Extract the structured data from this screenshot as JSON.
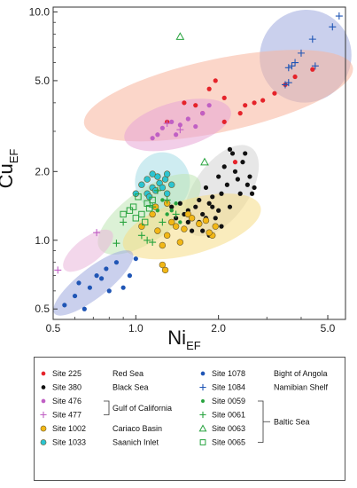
{
  "chart_data": {
    "type": "scatter",
    "xlabel_main": "Ni",
    "xlabel_sub": "EF",
    "ylabel_main": "Cu",
    "ylabel_sub": "EF",
    "x_scale": "log",
    "y_scale": "log",
    "xlim": [
      0.5,
      5.8
    ],
    "ylim": [
      0.45,
      10.5
    ],
    "x_ticks": [
      {
        "value": 0.5,
        "label": "0.5"
      },
      {
        "value": 1.0,
        "label": "1.0"
      },
      {
        "value": 2.0,
        "label": "2.0"
      },
      {
        "value": 5.0,
        "label": "5.0"
      }
    ],
    "y_ticks": [
      {
        "value": 0.5,
        "label": "0.5"
      },
      {
        "value": 1.0,
        "label": "1.0"
      },
      {
        "value": 2.0,
        "label": "2.0"
      },
      {
        "value": 5.0,
        "label": "5.0"
      },
      {
        "value": 10.0,
        "label": "10.0"
      }
    ],
    "regions": [
      {
        "cx": 4.15,
        "cy": 6.4,
        "rx_dec": 0.17,
        "ry_dec": 0.2,
        "angle": 57,
        "color": "#9fa9de"
      },
      {
        "cx": 2.0,
        "cy": 4.3,
        "rx_dec": 0.5,
        "ry_dec": 0.16,
        "angle": 12,
        "color": "#f7b49c"
      },
      {
        "cx": 1.42,
        "cy": 3.2,
        "rx_dec": 0.2,
        "ry_dec": 0.1,
        "angle": 15,
        "color": "#e8a6d6"
      },
      {
        "cx": 2.05,
        "cy": 1.65,
        "rx_dec": 0.19,
        "ry_dec": 0.12,
        "angle": 55,
        "color": "#d4d4d4"
      },
      {
        "cx": 1.25,
        "cy": 1.8,
        "rx_dec": 0.1,
        "ry_dec": 0.13,
        "angle": 0,
        "color": "#a5dde6"
      },
      {
        "cx": 1.12,
        "cy": 1.3,
        "rx_dec": 0.22,
        "ry_dec": 0.11,
        "angle": 35,
        "color": "#bfe6b4"
      },
      {
        "cx": 1.6,
        "cy": 1.15,
        "rx_dec": 0.26,
        "ry_dec": 0.12,
        "angle": 16,
        "color": "#f6dc86"
      },
      {
        "cx": 0.67,
        "cy": 0.9,
        "rx_dec": 0.11,
        "ry_dec": 0.055,
        "angle": 38,
        "color": "#e9b6db"
      },
      {
        "cx": 0.7,
        "cy": 0.65,
        "rx_dec": 0.18,
        "ry_dec": 0.065,
        "angle": 38,
        "color": "#9fa9de"
      }
    ],
    "series": [
      {
        "name": "Site 225",
        "marker": "dot",
        "color": "#e5232a",
        "points": [
          [
            1.3,
            3.3
          ],
          [
            1.5,
            4.0
          ],
          [
            1.65,
            3.9
          ],
          [
            1.85,
            4.6
          ],
          [
            1.95,
            5.0
          ],
          [
            2.1,
            3.3
          ],
          [
            2.4,
            3.6
          ],
          [
            2.5,
            3.9
          ],
          [
            2.7,
            4.0
          ],
          [
            2.9,
            4.1
          ],
          [
            3.2,
            4.4
          ],
          [
            3.5,
            4.8
          ],
          [
            3.8,
            5.2
          ],
          [
            4.4,
            5.6
          ],
          [
            2.1,
            4.2
          ],
          [
            1.75,
            3.6
          ],
          [
            2.3,
            2.2
          ]
        ]
      },
      {
        "name": "Site 380",
        "marker": "dot",
        "color": "#111111",
        "points": [
          [
            1.45,
            1.45
          ],
          [
            1.55,
            1.35
          ],
          [
            1.6,
            1.25
          ],
          [
            1.7,
            1.5
          ],
          [
            1.75,
            1.3
          ],
          [
            1.8,
            1.7
          ],
          [
            1.85,
            1.45
          ],
          [
            1.9,
            1.55
          ],
          [
            1.95,
            1.25
          ],
          [
            2.0,
            1.9
          ],
          [
            2.05,
            1.6
          ],
          [
            2.1,
            2.1
          ],
          [
            2.15,
            1.75
          ],
          [
            2.2,
            1.4
          ],
          [
            2.25,
            2.4
          ],
          [
            2.3,
            2.0
          ],
          [
            2.35,
            1.85
          ],
          [
            2.4,
            1.6
          ],
          [
            2.45,
            2.2
          ],
          [
            2.5,
            2.4
          ],
          [
            2.55,
            1.75
          ],
          [
            2.6,
            1.9
          ],
          [
            2.65,
            1.6
          ],
          [
            2.7,
            1.7
          ],
          [
            2.2,
            2.5
          ],
          [
            1.65,
            1.4
          ],
          [
            1.7,
            1.2
          ],
          [
            1.8,
            1.25
          ],
          [
            2.0,
            1.35
          ],
          [
            1.9,
            1.4
          ],
          [
            1.55,
            1.2
          ],
          [
            1.5,
            1.3
          ],
          [
            1.35,
            1.4
          ],
          [
            1.4,
            1.25
          ],
          [
            1.6,
            1.1
          ],
          [
            1.75,
            1.1
          ],
          [
            2.05,
            1.15
          ],
          [
            1.85,
            1.05
          ]
        ]
      },
      {
        "name": "Site 476",
        "marker": "dot",
        "color": "#c05fc4",
        "points": [
          [
            1.15,
            2.8
          ],
          [
            1.25,
            3.1
          ],
          [
            1.35,
            3.3
          ],
          [
            1.45,
            3.2
          ],
          [
            1.55,
            3.4
          ],
          [
            1.65,
            3.15
          ],
          [
            1.75,
            3.6
          ],
          [
            1.85,
            3.9
          ],
          [
            1.2,
            2.9
          ],
          [
            1.4,
            2.9
          ]
        ]
      },
      {
        "name": "Site 477",
        "marker": "plus",
        "color": "#c05fc4",
        "points": [
          [
            0.52,
            0.74
          ],
          [
            0.72,
            1.08
          ],
          [
            1.3,
            3.25
          ],
          [
            1.45,
            3.05
          ]
        ]
      },
      {
        "name": "Site 1002",
        "marker": "dot-outline",
        "color": "#f2b716",
        "points": [
          [
            1.2,
            1.1
          ],
          [
            1.25,
            0.95
          ],
          [
            1.3,
            1.05
          ],
          [
            1.35,
            1.2
          ],
          [
            1.4,
            1.15
          ],
          [
            1.45,
            0.98
          ],
          [
            1.5,
            1.12
          ],
          [
            1.55,
            1.3
          ],
          [
            1.6,
            1.25
          ],
          [
            1.7,
            1.18
          ],
          [
            1.8,
            1.22
          ],
          [
            1.9,
            1.05
          ],
          [
            1.85,
            1.08
          ],
          [
            1.95,
            1.15
          ],
          [
            1.25,
            0.78
          ],
          [
            1.28,
            0.74
          ],
          [
            1.15,
            1.3
          ],
          [
            1.18,
            1.4
          ],
          [
            1.3,
            1.45
          ],
          [
            1.05,
            1.15
          ]
        ]
      },
      {
        "name": "Site 1033",
        "marker": "dot-outline",
        "color": "#2cc4d1",
        "points": [
          [
            1.0,
            1.6
          ],
          [
            1.05,
            1.75
          ],
          [
            1.1,
            1.85
          ],
          [
            1.15,
            1.7
          ],
          [
            1.18,
            1.65
          ],
          [
            1.2,
            1.9
          ],
          [
            1.22,
            1.78
          ],
          [
            1.25,
            1.7
          ],
          [
            1.28,
            1.85
          ],
          [
            1.3,
            1.6
          ],
          [
            1.35,
            1.75
          ],
          [
            1.1,
            1.6
          ],
          [
            1.15,
            1.95
          ],
          [
            1.3,
            1.95
          ],
          [
            1.12,
            1.55
          ]
        ]
      },
      {
        "name": "Site 1078",
        "marker": "dot",
        "color": "#1f55b5",
        "points": [
          [
            0.55,
            0.52
          ],
          [
            0.6,
            0.57
          ],
          [
            0.65,
            0.5
          ],
          [
            0.68,
            0.62
          ],
          [
            0.72,
            0.7
          ],
          [
            0.75,
            0.68
          ],
          [
            0.78,
            0.75
          ],
          [
            0.8,
            0.6
          ],
          [
            0.85,
            0.8
          ],
          [
            0.9,
            0.62
          ],
          [
            0.95,
            0.7
          ],
          [
            1.0,
            0.83
          ],
          [
            0.62,
            0.65
          ]
        ]
      },
      {
        "name": "Site 1084",
        "marker": "plus",
        "color": "#1f55b5",
        "points": [
          [
            3.5,
            4.8
          ],
          [
            3.6,
            5.7
          ],
          [
            3.7,
            5.8
          ],
          [
            3.8,
            6.0
          ],
          [
            4.0,
            6.6
          ],
          [
            4.4,
            7.6
          ],
          [
            5.2,
            8.6
          ],
          [
            5.5,
            9.6
          ],
          [
            4.5,
            5.8
          ],
          [
            3.6,
            4.9
          ]
        ]
      },
      {
        "name": "Site 0059",
        "marker": "dot-small",
        "color": "#27a33e",
        "points": [
          [
            1.25,
            1.5
          ],
          [
            1.35,
            1.35
          ],
          [
            1.45,
            1.2
          ],
          [
            1.3,
            1.3
          ],
          [
            1.4,
            1.45
          ],
          [
            1.2,
            1.35
          ]
        ]
      },
      {
        "name": "Site 0061",
        "marker": "plus",
        "color": "#27a33e",
        "points": [
          [
            0.85,
            0.97
          ],
          [
            0.9,
            1.2
          ],
          [
            1.05,
            1.05
          ],
          [
            1.1,
            1.0
          ],
          [
            1.15,
            0.98
          ],
          [
            1.25,
            1.2
          ],
          [
            1.15,
            1.4
          ],
          [
            1.3,
            1.5
          ],
          [
            1.4,
            1.3
          ],
          [
            1.2,
            1.65
          ]
        ]
      },
      {
        "name": "Site 0063",
        "marker": "triangle",
        "color": "#27a33e",
        "points": [
          [
            1.45,
            7.8
          ],
          [
            1.78,
            2.2
          ]
        ]
      },
      {
        "name": "Site 0065",
        "marker": "square",
        "color": "#27a33e",
        "points": [
          [
            0.9,
            1.3
          ],
          [
            0.95,
            1.35
          ],
          [
            1.0,
            1.25
          ],
          [
            1.05,
            1.3
          ],
          [
            1.08,
            1.2
          ],
          [
            1.1,
            1.45
          ],
          [
            1.15,
            1.5
          ],
          [
            1.12,
            1.38
          ],
          [
            0.98,
            1.4
          ],
          [
            1.02,
            1.55
          ]
        ]
      }
    ]
  },
  "legend": {
    "entries": [
      {
        "label": "Site 225",
        "series": 0
      },
      {
        "label": "Site 380",
        "series": 1
      },
      {
        "label": "Site 476",
        "series": 2
      },
      {
        "label": "Site 477",
        "series": 3
      },
      {
        "label": "Site 1002",
        "series": 4
      },
      {
        "label": "Site 1033",
        "series": 5
      },
      {
        "label": "Site 1078",
        "series": 6
      },
      {
        "label": "Site 1084",
        "series": 7
      },
      {
        "label": "Site 0059",
        "series": 8
      },
      {
        "label": "Site 0061",
        "series": 9
      },
      {
        "label": "Site 0063",
        "series": 10
      },
      {
        "label": "Site 0065",
        "series": 11
      }
    ],
    "regions": [
      {
        "label": "Red Sea"
      },
      {
        "label": "Black Sea"
      },
      {
        "label": "Gulf of California"
      },
      {
        "label": "Cariaco Basin"
      },
      {
        "label": "Saanich Inlet"
      },
      {
        "label": "Bight of Angola"
      },
      {
        "label": "Namibian Shelf"
      },
      {
        "label": "Baltic Sea"
      }
    ]
  }
}
